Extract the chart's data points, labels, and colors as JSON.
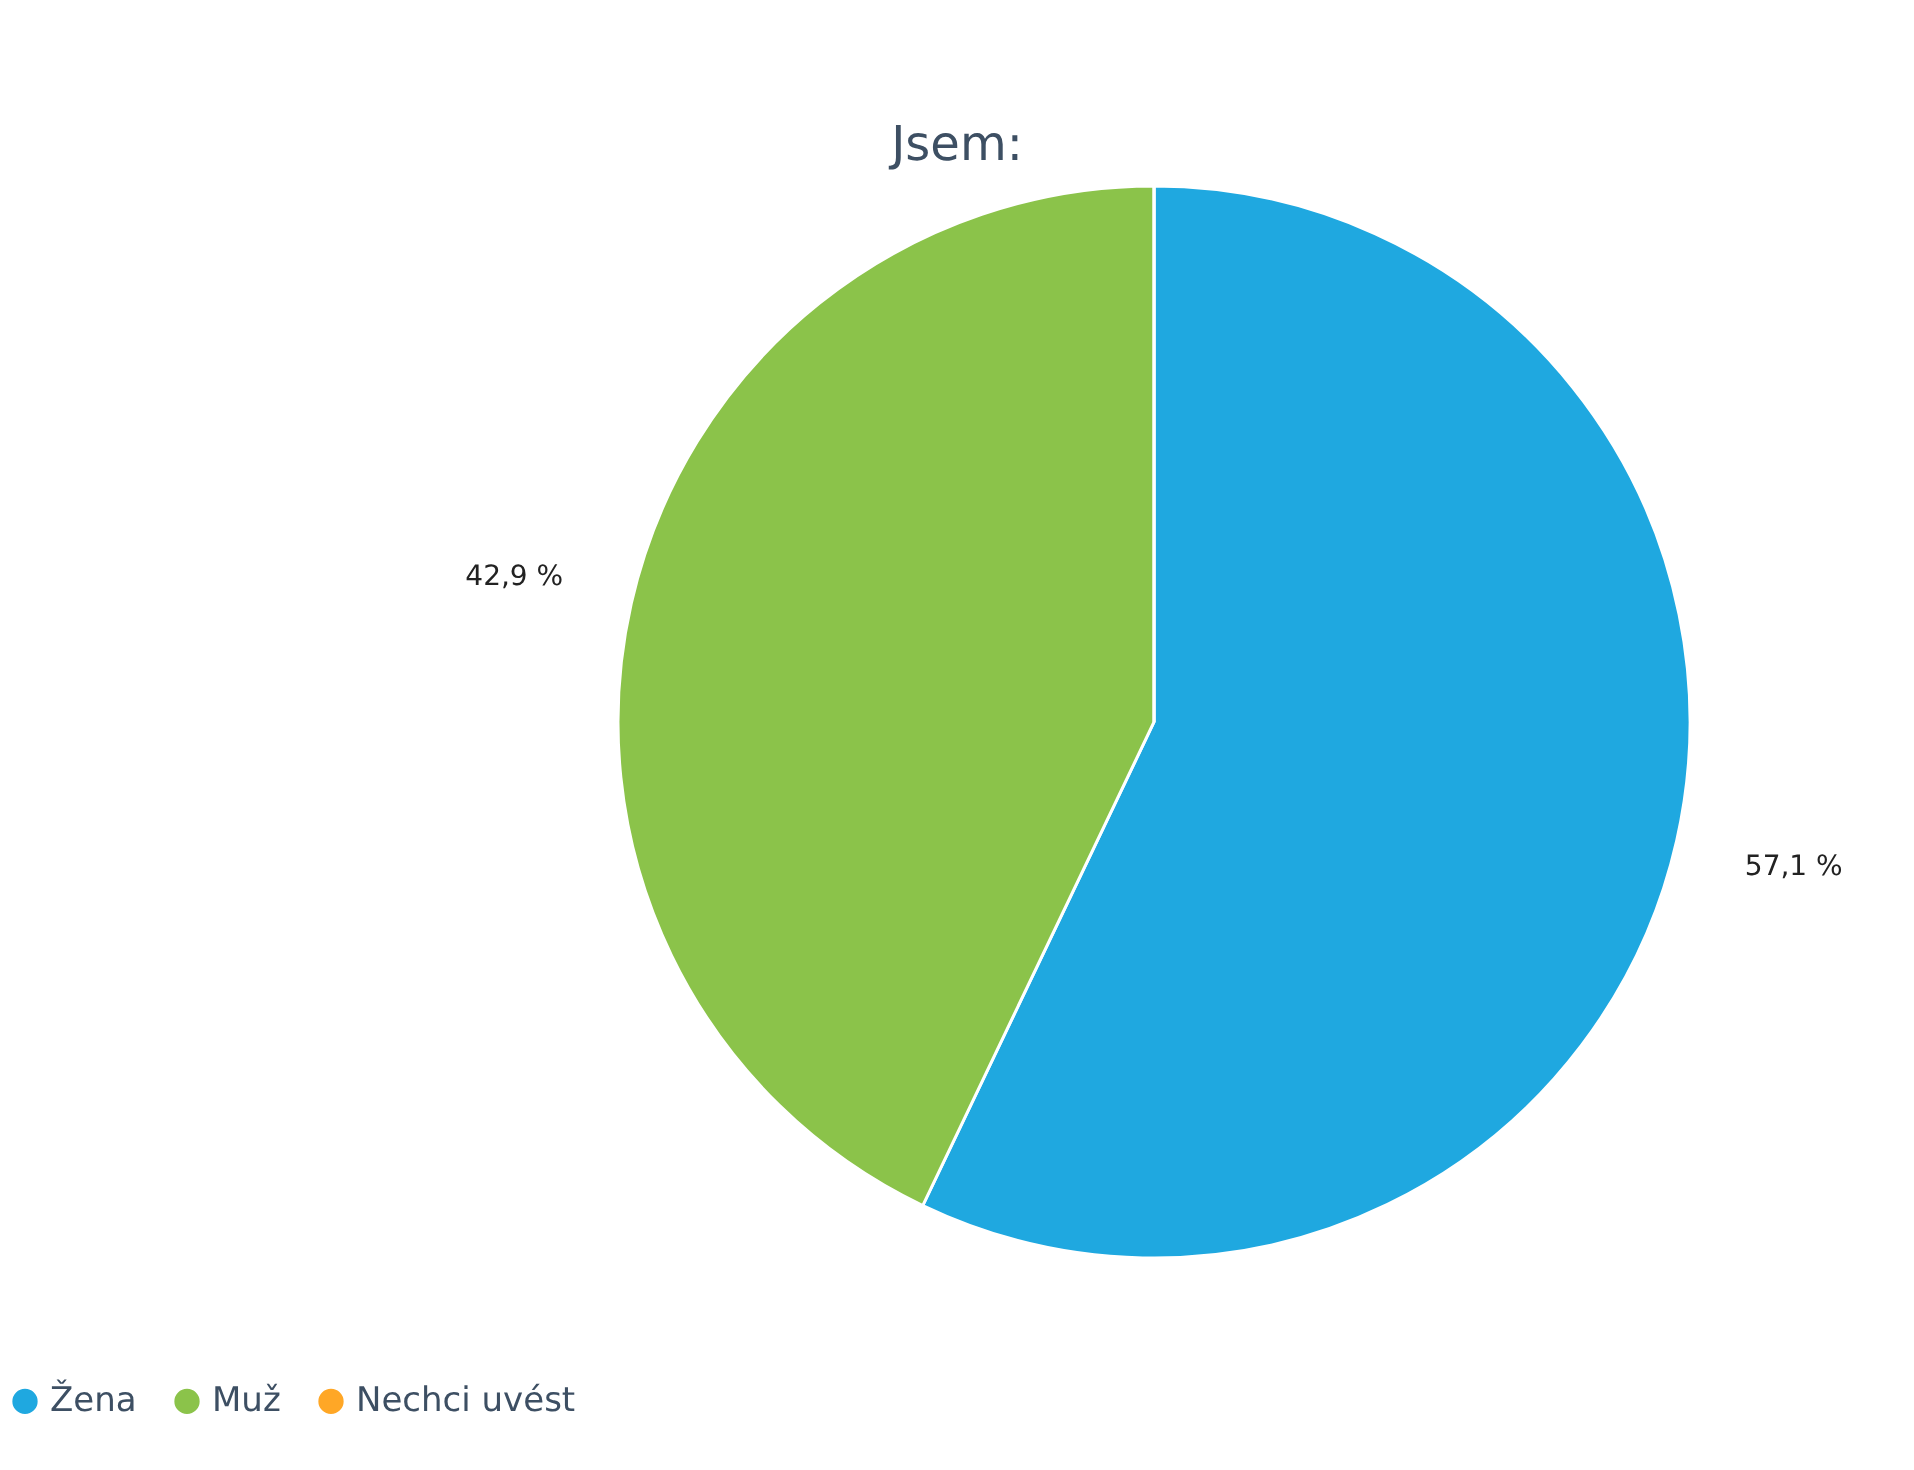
{
  "chart_data": {
    "type": "pie",
    "title": "Jsem:",
    "categories": [
      "Žena",
      "Muž",
      "Nechci uvést"
    ],
    "values": [
      57.1,
      42.9,
      0
    ],
    "colors": [
      "#1fa8e0",
      "#8bc34a",
      "#ffa726"
    ],
    "value_labels": [
      "57,1 %",
      "42,9 %",
      null
    ],
    "legend": "bottom left"
  }
}
